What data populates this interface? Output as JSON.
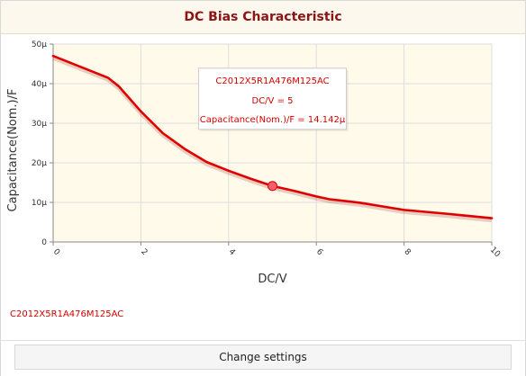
{
  "header": {
    "title": "DC Bias Characteristic"
  },
  "legend": {
    "part_number": "C2012X5R1A476M125AC"
  },
  "footer": {
    "change_settings_label": "Change settings"
  },
  "colors": {
    "series": "#e00000",
    "plot_bg": "#fffaea",
    "grid": "#dddddd",
    "title": "#8b1515"
  },
  "tooltip": {
    "part_number": "C2012X5R1A476M125AC",
    "x_line": "DC/V = 5",
    "y_line": "Capacitance(Nom.)/F = 14.142µ"
  },
  "chart_data": {
    "type": "line",
    "xlabel": "DC/V",
    "ylabel": "Capacitance(Nom.)/F",
    "xlim": [
      0,
      10
    ],
    "ylim": [
      0,
      50
    ],
    "x_ticks": [
      0,
      2,
      4,
      6,
      8,
      10
    ],
    "x_tick_labels": [
      "0",
      "2",
      "4",
      "6",
      "8",
      "10"
    ],
    "y_ticks": [
      0,
      10,
      20,
      30,
      40,
      50
    ],
    "y_tick_labels": [
      "0",
      "10µ",
      "20µ",
      "30µ",
      "40µ",
      "50µ"
    ],
    "grid": true,
    "series": [
      {
        "name": "C2012X5R1A476M125AC",
        "x": [
          0,
          1.25,
          1.5,
          2,
          2.5,
          3,
          3.5,
          4,
          4.5,
          5,
          5.5,
          6,
          6.3,
          7,
          8,
          9,
          10
        ],
        "y": [
          47,
          41.5,
          39.3,
          33,
          27.5,
          23.5,
          20.2,
          18,
          16,
          14.142,
          12.9,
          11.5,
          10.8,
          9.9,
          8.1,
          7.1,
          6
        ]
      }
    ],
    "highlight": {
      "x": 5,
      "y": 14.142
    }
  }
}
